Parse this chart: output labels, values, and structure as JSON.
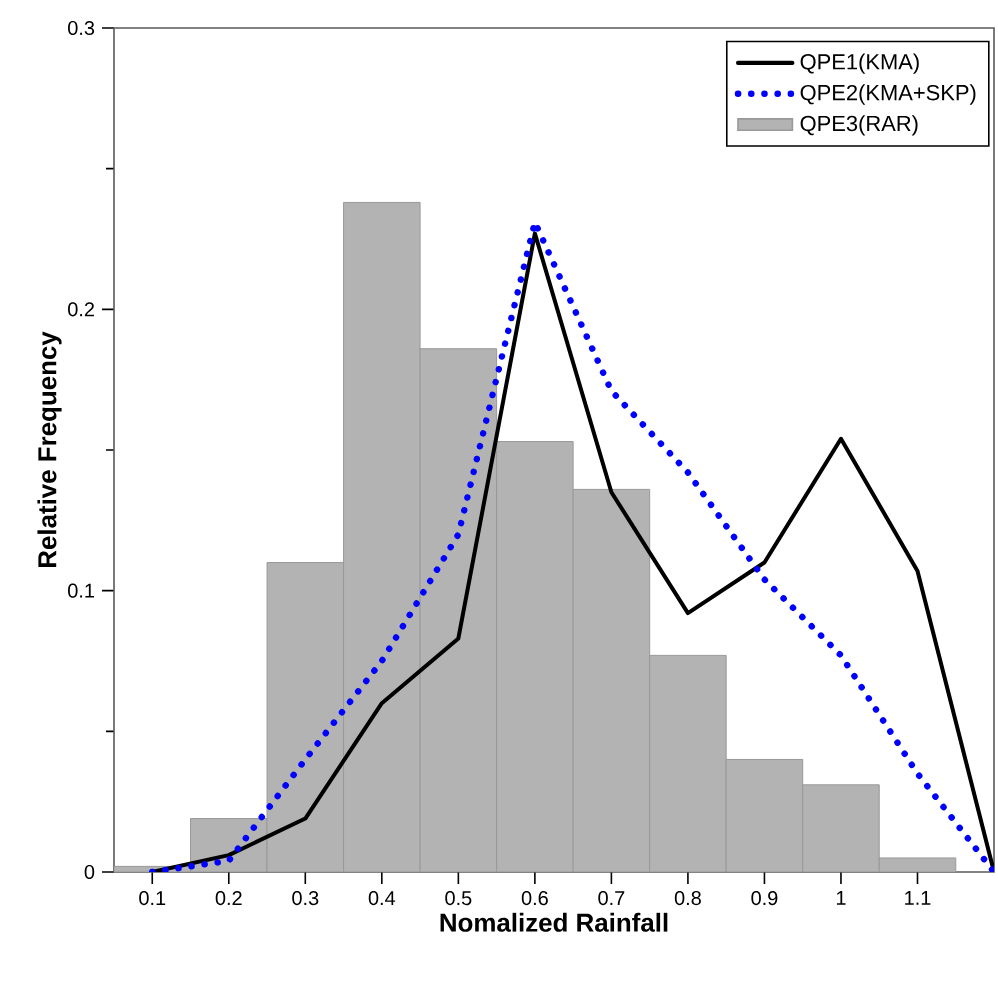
{
  "chart_data": {
    "type": "histogram",
    "xlabel": "Nomalized Rainfall",
    "ylabel": "Relative Frequency",
    "xlim": [
      0.05,
      1.2
    ],
    "ylim": [
      0,
      0.3
    ],
    "xticks": [
      0.1,
      0.2,
      0.3,
      0.4,
      0.5,
      0.6,
      0.7,
      0.8,
      0.9,
      1,
      1.1
    ],
    "yticks": [
      0,
      0.1,
      0.2,
      0.3
    ],
    "legend": "top right",
    "grid": false,
    "series": [
      {
        "name": "QPE1(KMA)",
        "type": "line",
        "color": "#000000",
        "line_style": "solid",
        "x": [
          0.1,
          0.2,
          0.3,
          0.4,
          0.5,
          0.6,
          0.7,
          0.8,
          0.9,
          1.0,
          1.1,
          1.2
        ],
        "values": [
          0,
          0.006,
          0.019,
          0.06,
          0.083,
          0.227,
          0.135,
          0.092,
          0.11,
          0.154,
          0.107,
          0
        ]
      },
      {
        "name": "QPE2(KMA+SKP)",
        "type": "line",
        "color": "#0000ff",
        "line_style": "dotted",
        "x": [
          0.1,
          0.2,
          0.3,
          0.4,
          0.5,
          0.6,
          0.7,
          0.8,
          0.9,
          1.0,
          1.1,
          1.2
        ],
        "values": [
          0,
          0.004,
          0.04,
          0.075,
          0.12,
          0.231,
          0.171,
          0.142,
          0.104,
          0.077,
          0.035,
          0
        ]
      },
      {
        "name": "QPE3(RAR)",
        "type": "histogram",
        "color": "#b3b3b3",
        "bins": [
          0.05,
          0.15,
          0.25,
          0.35,
          0.45,
          0.55,
          0.65,
          0.75,
          0.85,
          0.95,
          1.05,
          1.15
        ],
        "values": [
          0.002,
          0.019,
          0.11,
          0.238,
          0.186,
          0.153,
          0.136,
          0.077,
          0.04,
          0.031,
          0.005
        ]
      }
    ]
  }
}
